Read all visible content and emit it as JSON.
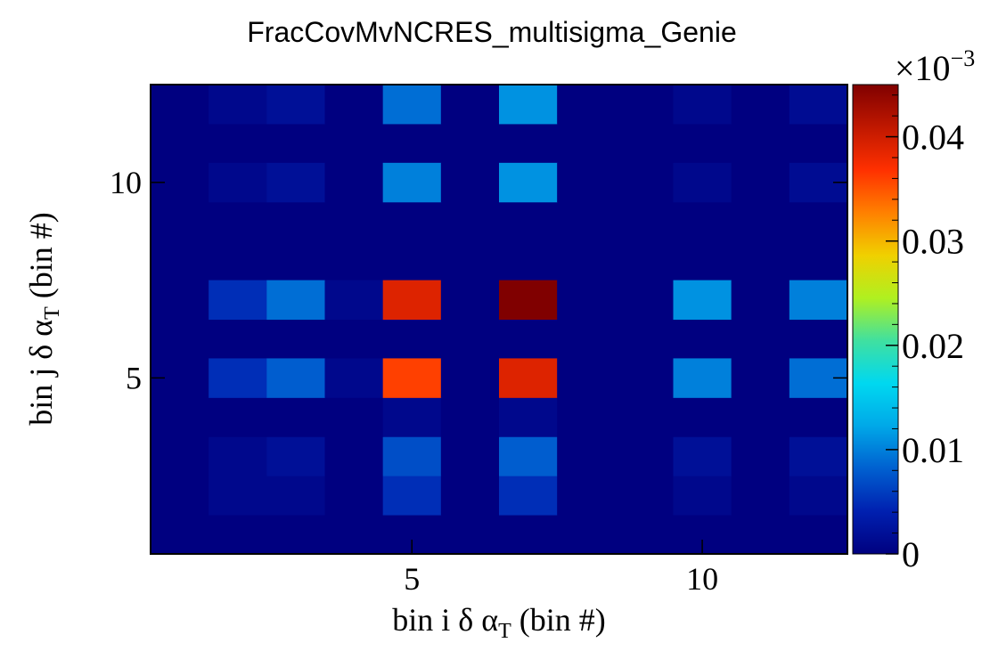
{
  "chart_data": {
    "type": "heatmap",
    "title": "FracCovMvNCRES_multisigma_Genie",
    "xlabel": {
      "prefix": "bin i ",
      "symbol": "δ α",
      "sub": "T",
      "suffix": " (bin #)"
    },
    "ylabel": {
      "prefix": "bin j ",
      "symbol": "δ α",
      "sub": "T",
      "suffix": " (bin #)"
    },
    "xlim": [
      0.5,
      12.5
    ],
    "ylim": [
      0.5,
      12.5
    ],
    "x_ticks": [
      5,
      10
    ],
    "y_ticks": [
      5,
      10
    ],
    "zlim": [
      0,
      0.045
    ],
    "colorbar": {
      "ticks": [
        0,
        0.01,
        0.02,
        0.03,
        0.04
      ],
      "tick_labels": [
        "0",
        "0.01",
        "0.02",
        "0.03",
        "0.04"
      ],
      "exponent_label": "×10",
      "exponent_power": "−3",
      "colors": [
        "#000080",
        "#0020b0",
        "#0060d0",
        "#00a8e8",
        "#00d8f0",
        "#40e0a0",
        "#b0f020",
        "#f0d000",
        "#ff8000",
        "#ff3000",
        "#c01800",
        "#800000"
      ]
    },
    "rows_top_to_bottom": [
      12,
      10,
      7,
      5,
      4,
      3,
      2,
      1
    ],
    "z_rows": {
      "12": [
        0,
        0.001,
        0.002,
        0,
        0.009,
        0,
        0.011,
        0,
        0,
        0.001,
        0,
        0.0015
      ],
      "10": [
        0,
        0.001,
        0.002,
        0,
        0.01,
        0,
        0.011,
        0,
        0,
        0.001,
        0,
        0.0015
      ],
      "7": [
        0,
        0.005,
        0.009,
        0.001,
        0.039,
        0,
        0.045,
        0,
        0,
        0.011,
        0,
        0.01
      ],
      "5": [
        0,
        0.005,
        0.008,
        0.001,
        0.036,
        0,
        0.039,
        0,
        0,
        0.01,
        0,
        0.009
      ],
      "4": [
        0,
        0,
        0,
        0,
        0.001,
        0,
        0.001,
        0,
        0,
        0,
        0,
        0
      ],
      "3": [
        0,
        0.001,
        0.002,
        0,
        0.007,
        0,
        0.008,
        0,
        0,
        0.002,
        0,
        0.002
      ],
      "2": [
        0,
        0.001,
        0.001,
        0,
        0.005,
        0,
        0.005,
        0,
        0,
        0.001,
        0,
        0.001
      ],
      "1": [
        0,
        0,
        0,
        0,
        0,
        0,
        0,
        0,
        0,
        0,
        0,
        0
      ]
    },
    "background_color": "#000080",
    "grid": false
  }
}
